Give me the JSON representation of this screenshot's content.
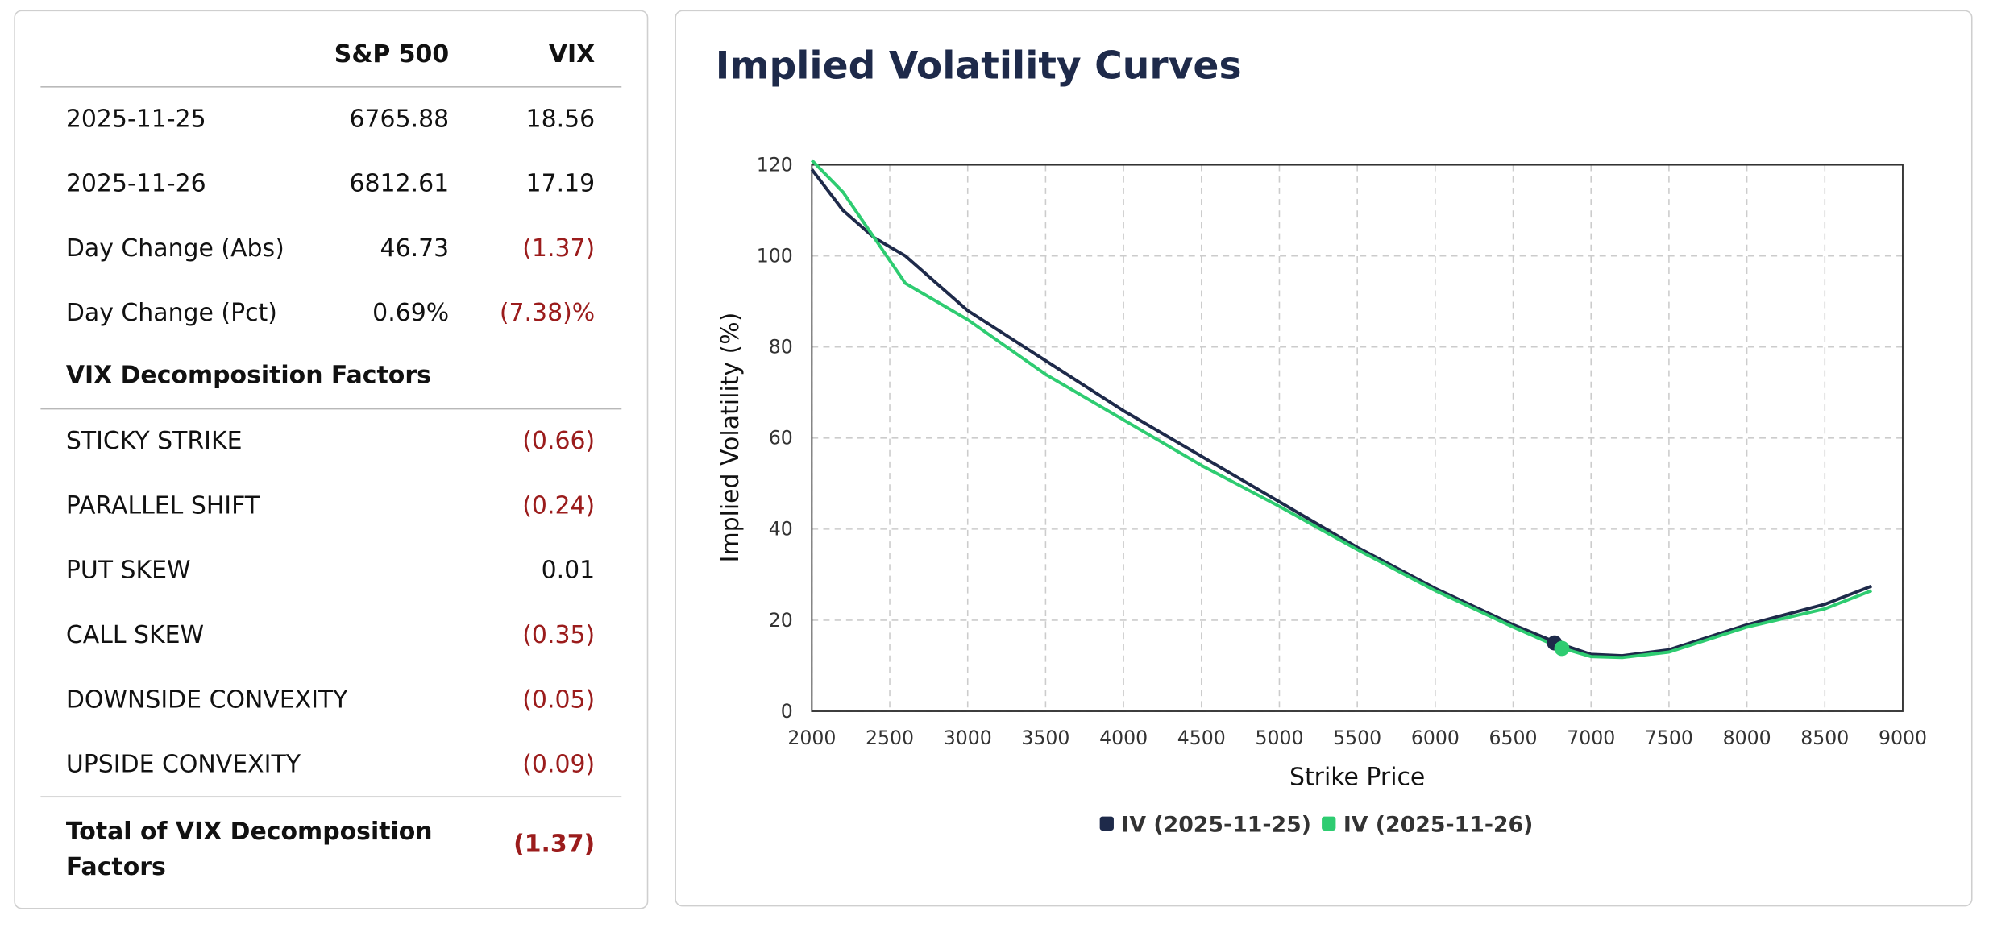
{
  "table": {
    "header": [
      "S&P 500",
      "VIX"
    ],
    "rows": [
      [
        "2025-11-25",
        "6765.88",
        "18.56"
      ],
      [
        "2025-11-26",
        "6812.61",
        "17.19"
      ],
      [
        "Day Change (Abs)",
        "46.73",
        "(1.37)"
      ],
      [
        "Day Change (Pct)",
        "0.69%",
        "(7.38)%"
      ]
    ],
    "factors_title": "VIX Decomposition Factors",
    "factors": [
      [
        "STICKY STRIKE",
        "(0.66)"
      ],
      [
        "PARALLEL SHIFT",
        "(0.24)"
      ],
      [
        "PUT SKEW",
        "0.01"
      ],
      [
        "CALL SKEW",
        "(0.35)"
      ],
      [
        "DOWNSIDE CONVEXITY",
        "(0.05)"
      ],
      [
        "UPSIDE CONVEXITY",
        "(0.09)"
      ]
    ],
    "total": [
      "Total of VIX Decomposition Factors",
      "(1.37)"
    ]
  },
  "chart_data": {
    "type": "line",
    "title": "Implied Volatility Curves",
    "x_label": "Strike Price",
    "y_label": "Implied Volatility (%)",
    "x": [
      2000,
      2200,
      2400,
      2600,
      2800,
      3000,
      3500,
      4000,
      4500,
      5000,
      5500,
      6000,
      6500,
      6800,
      7000,
      7200,
      7500,
      8000,
      8500,
      8800
    ],
    "series": [
      {
        "name": "IV (2025-11-25)",
        "color": "#1e2a4a",
        "values": [
          119,
          110,
          104,
          100,
          94,
          88,
          77,
          66,
          56,
          46,
          36,
          27,
          19,
          14.8,
          12.5,
          12.2,
          13.5,
          19,
          23.5,
          27.5
        ],
        "spot": {
          "x": 6765.88,
          "y": 15
        }
      },
      {
        "name": "IV (2025-11-26)",
        "color": "#2ecc71",
        "values": [
          121,
          114,
          104,
          94,
          90,
          86,
          74,
          64,
          54,
          45,
          35.5,
          26.5,
          18.5,
          14,
          12,
          11.8,
          13,
          18.5,
          22.5,
          26.5
        ],
        "spot": {
          "x": 6812.61,
          "y": 13.8
        }
      }
    ],
    "xlim": [
      2000,
      9000
    ],
    "xticks": [
      2000,
      2500,
      3000,
      3500,
      4000,
      4500,
      5000,
      5500,
      6000,
      6500,
      7000,
      7500,
      8000,
      8500,
      9000
    ],
    "ylim": [
      0,
      120
    ],
    "yticks": [
      0,
      20,
      40,
      60,
      80,
      100,
      120
    ],
    "grid": true,
    "legend": "bottom"
  }
}
